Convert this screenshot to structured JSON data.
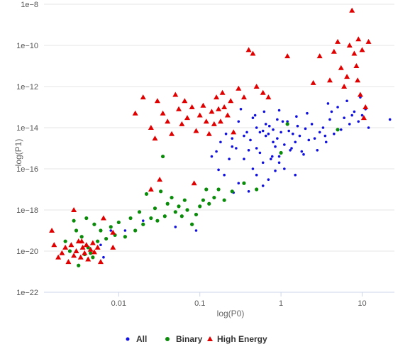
{
  "chart_data": {
    "type": "scatter",
    "title": "",
    "xlabel": "log(P0)",
    "ylabel": "log(P1)",
    "x_scale": "log",
    "y_scale": "log",
    "xlim": [
      0.0012,
      25
    ],
    "ylim": [
      1e-22,
      1e-08
    ],
    "x_ticks": [
      {
        "value": 0.01,
        "label": "0.01"
      },
      {
        "value": 0.1,
        "label": "0.1"
      },
      {
        "value": 1,
        "label": "1"
      },
      {
        "value": 10,
        "label": "10"
      }
    ],
    "y_ticks": [
      {
        "value": 1e-22,
        "label": "1e−22"
      },
      {
        "value": 1e-20,
        "label": "1e−20"
      },
      {
        "value": 1e-18,
        "label": "1e−18"
      },
      {
        "value": 1e-16,
        "label": "1e−16"
      },
      {
        "value": 1e-14,
        "label": "1e−14"
      },
      {
        "value": 1e-12,
        "label": "1e−12"
      },
      {
        "value": 1e-10,
        "label": "1e−10"
      },
      {
        "value": 1e-08,
        "label": "1e−8"
      }
    ],
    "horizontal_grid": true,
    "legend_position": "bottom-center",
    "series": [
      {
        "name": "All",
        "marker": "circle",
        "color": "#1010e0",
        "points": [
          [
            0.09,
            1e-19
          ],
          [
            0.05,
            1.5e-19
          ],
          [
            0.03,
            3e-19
          ],
          [
            0.02,
            3e-19
          ],
          [
            0.012,
            1e-19
          ],
          [
            0.008,
            1e-19
          ],
          [
            0.0065,
            5e-21
          ],
          [
            0.006,
            2e-20
          ],
          [
            0.21,
            5e-15
          ],
          [
            0.25,
            1.2e-15
          ],
          [
            0.3,
            2e-14
          ],
          [
            0.35,
            4e-15
          ],
          [
            0.4,
            8e-16
          ],
          [
            0.45,
            3e-14
          ],
          [
            0.5,
            1e-15
          ],
          [
            0.55,
            6e-15
          ],
          [
            0.6,
            2e-16
          ],
          [
            0.65,
            1.5e-14
          ],
          [
            0.7,
            5e-15
          ],
          [
            0.75,
            3e-16
          ],
          [
            0.8,
            8e-15
          ],
          [
            0.85,
            1.2e-15
          ],
          [
            0.9,
            2.5e-14
          ],
          [
            0.95,
            4e-16
          ],
          [
            1.0,
            6e-15
          ],
          [
            1.1,
            1.5e-15
          ],
          [
            1.2,
            2e-14
          ],
          [
            1.3,
            8e-16
          ],
          [
            1.4,
            5e-15
          ],
          [
            1.5,
            2e-15
          ],
          [
            1.6,
            1.2e-14
          ],
          [
            1.7,
            4e-15
          ],
          [
            1.8,
            7e-16
          ],
          [
            2.0,
            9e-15
          ],
          [
            2.2,
            2.5e-15
          ],
          [
            2.4,
            1.5e-14
          ],
          [
            2.6,
            3e-15
          ],
          [
            3.0,
            6e-15
          ],
          [
            3.3,
            1e-14
          ],
          [
            3.6,
            2e-15
          ],
          [
            4.0,
            2.5e-14
          ],
          [
            4.5,
            5e-15
          ],
          [
            5.0,
            1e-13
          ],
          [
            5.5,
            8e-15
          ],
          [
            6.0,
            3e-14
          ],
          [
            7.0,
            1.5e-14
          ],
          [
            8.0,
            6e-14
          ],
          [
            9.0,
            2e-14
          ],
          [
            10.0,
            4e-14
          ],
          [
            12.0,
            1e-14
          ],
          [
            22.0,
            2.5e-14
          ],
          [
            0.3,
            2e-17
          ],
          [
            0.4,
            8e-18
          ],
          [
            0.5,
            5e-17
          ],
          [
            0.6,
            1.5e-17
          ],
          [
            0.7,
            3e-17
          ],
          [
            0.85,
            8e-17
          ],
          [
            0.95,
            2e-16
          ],
          [
            0.45,
            1e-16
          ],
          [
            1.1,
            1e-16
          ],
          [
            1.5,
            5e-17
          ],
          [
            0.35,
            3e-16
          ],
          [
            0.55,
            6e-16
          ],
          [
            0.8,
            2e-15
          ],
          [
            0.65,
            4e-15
          ],
          [
            0.5,
            1e-14
          ],
          [
            0.42,
            2.5e-15
          ],
          [
            0.72,
            1.2e-14
          ],
          [
            0.9,
            3e-15
          ],
          [
            1.25,
            7e-15
          ],
          [
            1.05,
            2e-14
          ],
          [
            1.35,
            1e-15
          ],
          [
            0.6,
            7e-15
          ],
          [
            0.78,
            4e-16
          ],
          [
            0.38,
            6e-15
          ],
          [
            0.28,
            1e-15
          ],
          [
            0.25,
            3e-15
          ],
          [
            0.18,
            2e-15
          ],
          [
            0.16,
            7e-16
          ],
          [
            0.23,
            3e-16
          ],
          [
            1.9,
            5e-16
          ],
          [
            2.8,
            8e-16
          ],
          [
            3.5,
            4e-15
          ],
          [
            6.5,
            2e-13
          ],
          [
            7.5,
            4e-14
          ],
          [
            11.0,
            8e-14
          ],
          [
            4.2,
            6e-14
          ],
          [
            3.8,
            1.5e-13
          ],
          [
            9.5,
            3e-13
          ],
          [
            1.55,
            3.5e-14
          ],
          [
            2.1,
            5e-14
          ],
          [
            0.48,
            4e-14
          ],
          [
            0.62,
            6e-14
          ],
          [
            0.95,
            7e-14
          ],
          [
            0.32,
            8e-14
          ],
          [
            0.14,
            4e-16
          ],
          [
            0.17,
            9e-17
          ],
          [
            0.2,
            5e-17
          ],
          [
            0.26,
            7e-18
          ]
        ]
      },
      {
        "name": "Binary",
        "marker": "circle",
        "color": "#0a8c0a",
        "points": [
          [
            0.0022,
            3e-20
          ],
          [
            0.0025,
            1e-20
          ],
          [
            0.0028,
            3e-19
          ],
          [
            0.003,
            1e-19
          ],
          [
            0.0032,
            2e-21
          ],
          [
            0.0035,
            5e-20
          ],
          [
            0.004,
            4e-19
          ],
          [
            0.0045,
            8e-21
          ],
          [
            0.005,
            2e-19
          ],
          [
            0.0055,
            3e-20
          ],
          [
            0.006,
            1e-19
          ],
          [
            0.007,
            4e-20
          ],
          [
            0.008,
            1.5e-19
          ],
          [
            0.009,
            6e-20
          ],
          [
            0.01,
            2.5e-19
          ],
          [
            0.012,
            5e-20
          ],
          [
            0.014,
            4e-19
          ],
          [
            0.016,
            1e-19
          ],
          [
            0.018,
            8e-19
          ],
          [
            0.02,
            2e-19
          ],
          [
            0.022,
            6e-18
          ],
          [
            0.025,
            4e-19
          ],
          [
            0.028,
            1.2e-18
          ],
          [
            0.03,
            3e-19
          ],
          [
            0.033,
            8e-18
          ],
          [
            0.037,
            5e-19
          ],
          [
            0.04,
            2e-18
          ],
          [
            0.045,
            4e-18
          ],
          [
            0.05,
            8e-19
          ],
          [
            0.055,
            1.5e-18
          ],
          [
            0.06,
            5e-19
          ],
          [
            0.065,
            3e-18
          ],
          [
            0.07,
            1e-18
          ],
          [
            0.08,
            2e-19
          ],
          [
            0.09,
            6e-19
          ],
          [
            0.1,
            1.5e-18
          ],
          [
            0.11,
            3e-18
          ],
          [
            0.12,
            1e-17
          ],
          [
            0.13,
            2e-18
          ],
          [
            0.15,
            4e-18
          ],
          [
            0.17,
            1e-17
          ],
          [
            0.2,
            3e-18
          ],
          [
            0.25,
            8e-18
          ],
          [
            0.35,
            2e-17
          ],
          [
            0.5,
            1e-17
          ],
          [
            1.0,
            6e-16
          ],
          [
            1.2,
            1.5e-14
          ],
          [
            5.0,
            8e-15
          ],
          [
            0.035,
            4e-16
          ],
          [
            0.0038,
            7e-21
          ],
          [
            0.0042,
            1.5e-20
          ],
          [
            0.0048,
            5e-21
          ]
        ]
      },
      {
        "name": "High Energy",
        "marker": "triangle",
        "color": "#e00000",
        "points": [
          [
            0.0015,
            1e-19
          ],
          [
            0.0016,
            2e-20
          ],
          [
            0.0018,
            5e-21
          ],
          [
            0.002,
            8e-21
          ],
          [
            0.0022,
            1.5e-20
          ],
          [
            0.0024,
            3e-21
          ],
          [
            0.0026,
            2e-20
          ],
          [
            0.0028,
            6e-21
          ],
          [
            0.003,
            1e-20
          ],
          [
            0.0032,
            3e-20
          ],
          [
            0.0034,
            5e-21
          ],
          [
            0.0036,
            1.5e-20
          ],
          [
            0.0038,
            8e-21
          ],
          [
            0.004,
            2e-20
          ],
          [
            0.0042,
            4e-21
          ],
          [
            0.0045,
            1.2e-20
          ],
          [
            0.0048,
            2.5e-20
          ],
          [
            0.005,
            9e-21
          ],
          [
            0.0055,
            1.5e-20
          ],
          [
            0.006,
            3e-21
          ],
          [
            0.0065,
            4e-19
          ],
          [
            0.0085,
            1.5e-20
          ],
          [
            0.0028,
            1e-18
          ],
          [
            0.0035,
            3e-20
          ],
          [
            0.016,
            5e-14
          ],
          [
            0.02,
            3e-13
          ],
          [
            0.025,
            1e-14
          ],
          [
            0.028,
            3e-15
          ],
          [
            0.03,
            2e-13
          ],
          [
            0.035,
            5e-14
          ],
          [
            0.04,
            2e-14
          ],
          [
            0.045,
            5e-15
          ],
          [
            0.05,
            4e-13
          ],
          [
            0.055,
            8e-14
          ],
          [
            0.06,
            1.5e-14
          ],
          [
            0.065,
            2e-13
          ],
          [
            0.07,
            3e-14
          ],
          [
            0.08,
            1e-13
          ],
          [
            0.09,
            7e-15
          ],
          [
            0.1,
            4e-14
          ],
          [
            0.11,
            1.2e-13
          ],
          [
            0.12,
            2e-14
          ],
          [
            0.13,
            5e-15
          ],
          [
            0.14,
            6e-14
          ],
          [
            0.15,
            1.5e-14
          ],
          [
            0.16,
            3e-13
          ],
          [
            0.17,
            8e-14
          ],
          [
            0.18,
            2e-14
          ],
          [
            0.19,
            5e-13
          ],
          [
            0.2,
            1e-13
          ],
          [
            0.22,
            4e-14
          ],
          [
            0.24,
            2e-13
          ],
          [
            0.26,
            6e-15
          ],
          [
            0.3,
            8e-13
          ],
          [
            0.35,
            3e-13
          ],
          [
            0.4,
            6e-11
          ],
          [
            0.45,
            4e-11
          ],
          [
            0.5,
            1e-12
          ],
          [
            0.6,
            5e-13
          ],
          [
            0.7,
            3e-13
          ],
          [
            1.2,
            3e-11
          ],
          [
            2.5,
            1.5e-12
          ],
          [
            3.0,
            3e-11
          ],
          [
            4.0,
            2e-12
          ],
          [
            4.5,
            5e-11
          ],
          [
            5.0,
            1.5e-10
          ],
          [
            5.5,
            8e-12
          ],
          [
            6.0,
            1e-12
          ],
          [
            6.5,
            3e-12
          ],
          [
            7.0,
            1e-10
          ],
          [
            7.5,
            5e-09
          ],
          [
            8.0,
            4e-11
          ],
          [
            8.5,
            1e-11
          ],
          [
            9.0,
            2e-10
          ],
          [
            10.0,
            6e-11
          ],
          [
            11.0,
            1e-13
          ],
          [
            12.0,
            1.5e-10
          ],
          [
            10.5,
            3e-14
          ],
          [
            9.5,
            4e-13
          ],
          [
            8.8,
            2e-12
          ],
          [
            0.032,
            3e-17
          ],
          [
            0.025,
            1e-17
          ],
          [
            0.085,
            2e-17
          ],
          [
            0.0085,
            8e-20
          ]
        ]
      }
    ]
  }
}
